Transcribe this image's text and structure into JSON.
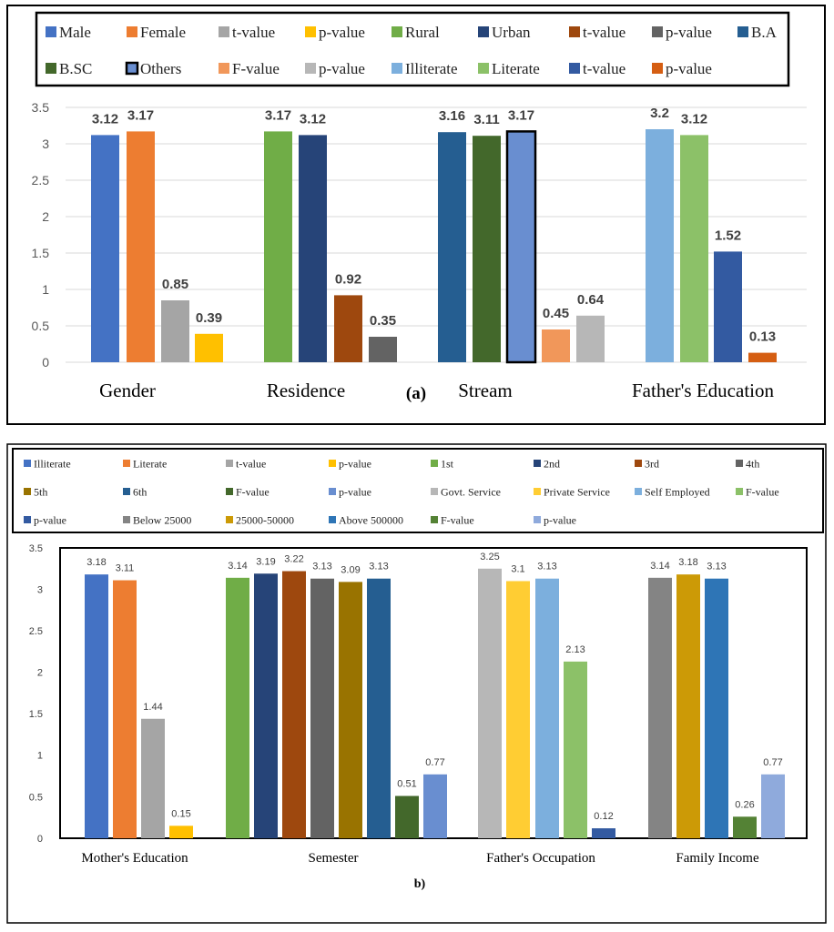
{
  "chart_data": [
    {
      "type": "bar",
      "panel_label": "(a)",
      "legend": [
        {
          "name": "Male",
          "color": "#4472C4"
        },
        {
          "name": "Female",
          "color": "#ED7D31"
        },
        {
          "name": "t-value",
          "color": "#A5A5A5"
        },
        {
          "name": "p-value",
          "color": "#FFC000"
        },
        {
          "name": "Rural",
          "color": "#70AD47"
        },
        {
          "name": "Urban",
          "color": "#264478"
        },
        {
          "name": "t-value",
          "color": "#9E480E"
        },
        {
          "name": "p-value",
          "color": "#636363"
        },
        {
          "name": "B.A",
          "color": "#255E91"
        },
        {
          "name": "B.SC",
          "color": "#43682B"
        },
        {
          "name": "Others",
          "color": "#698ED0",
          "outlined": true
        },
        {
          "name": "F-value",
          "color": "#F1975A"
        },
        {
          "name": "p-value",
          "color": "#B7B7B7"
        },
        {
          "name": "Illiterate",
          "color": "#7CAFDD"
        },
        {
          "name": "Literate",
          "color": "#8CC168"
        },
        {
          "name": "t-value",
          "color": "#335AA1"
        },
        {
          "name": "p-value",
          "color": "#D55E12"
        }
      ],
      "groups": [
        {
          "label": "Gender",
          "bars": [
            {
              "legend_index": 0,
              "value": 3.12,
              "label": "3.12"
            },
            {
              "legend_index": 1,
              "value": 3.17,
              "label": "3.17"
            },
            {
              "legend_index": 2,
              "value": 0.85,
              "label": "0.85"
            },
            {
              "legend_index": 3,
              "value": 0.39,
              "label": "0.39"
            }
          ]
        },
        {
          "label": "Residence",
          "bars": [
            {
              "legend_index": 4,
              "value": 3.17,
              "label": "3.17"
            },
            {
              "legend_index": 5,
              "value": 3.12,
              "label": "3.12"
            },
            {
              "legend_index": 6,
              "value": 0.92,
              "label": "0.92"
            },
            {
              "legend_index": 7,
              "value": 0.35,
              "label": "0.35"
            }
          ]
        },
        {
          "label": "Stream",
          "bars": [
            {
              "legend_index": 8,
              "value": 3.16,
              "label": "3.16"
            },
            {
              "legend_index": 9,
              "value": 3.11,
              "label": "3.11"
            },
            {
              "legend_index": 10,
              "value": 3.17,
              "label": "3.17"
            },
            {
              "legend_index": 11,
              "value": 0.45,
              "label": "0.45"
            },
            {
              "legend_index": 12,
              "value": 0.64,
              "label": "0.64"
            }
          ]
        },
        {
          "label": "Father's Education",
          "bars": [
            {
              "legend_index": 13,
              "value": 3.2,
              "label": "3.2"
            },
            {
              "legend_index": 14,
              "value": 3.12,
              "label": "3.12"
            },
            {
              "legend_index": 15,
              "value": 1.52,
              "label": "1.52"
            },
            {
              "legend_index": 16,
              "value": 0.13,
              "label": "0.13"
            }
          ]
        }
      ],
      "y_ticks": [
        "0",
        "0.5",
        "1",
        "1.5",
        "2",
        "2.5",
        "3",
        "3.5"
      ],
      "ylim": [
        0,
        3.5
      ],
      "grid": true
    },
    {
      "type": "bar",
      "panel_label": "b)",
      "legend": [
        {
          "name": "Illiterate",
          "color": "#4472C4"
        },
        {
          "name": "Literate",
          "color": "#ED7D31"
        },
        {
          "name": "t-value",
          "color": "#A5A5A5"
        },
        {
          "name": "p-value",
          "color": "#FFC000"
        },
        {
          "name": "1st",
          "color": "#70AD47"
        },
        {
          "name": "2nd",
          "color": "#264478"
        },
        {
          "name": "3rd",
          "color": "#9E480E"
        },
        {
          "name": "4th",
          "color": "#636363"
        },
        {
          "name": "5th",
          "color": "#997300"
        },
        {
          "name": "6th",
          "color": "#255E91"
        },
        {
          "name": "F-value",
          "color": "#43682B"
        },
        {
          "name": "p-value",
          "color": "#698ED0"
        },
        {
          "name": "Govt. Service",
          "color": "#B7B7B7"
        },
        {
          "name": "Private Service",
          "color": "#FFCD33"
        },
        {
          "name": "Self Employed",
          "color": "#7CAFDD"
        },
        {
          "name": "F-value",
          "color": "#8CC168"
        },
        {
          "name": "p-value",
          "color": "#335AA1"
        },
        {
          "name": "Below 25000",
          "color": "#848484"
        },
        {
          "name": "25000-50000",
          "color": "#CC9A06"
        },
        {
          "name": "Above 500000",
          "color": "#2E75B6"
        },
        {
          "name": "F-value",
          "color": "#548235"
        },
        {
          "name": "p-value",
          "color": "#8FAADC"
        }
      ],
      "groups": [
        {
          "label": "Mother's Education",
          "bars": [
            {
              "legend_index": 0,
              "value": 3.18,
              "label": "3.18"
            },
            {
              "legend_index": 1,
              "value": 3.11,
              "label": "3.11"
            },
            {
              "legend_index": 2,
              "value": 1.44,
              "label": "1.44"
            },
            {
              "legend_index": 3,
              "value": 0.15,
              "label": "0.15"
            }
          ]
        },
        {
          "label": "Semester",
          "bars": [
            {
              "legend_index": 4,
              "value": 3.14,
              "label": "3.14"
            },
            {
              "legend_index": 5,
              "value": 3.19,
              "label": "3.19"
            },
            {
              "legend_index": 6,
              "value": 3.22,
              "label": "3.22"
            },
            {
              "legend_index": 7,
              "value": 3.13,
              "label": "3.13"
            },
            {
              "legend_index": 8,
              "value": 3.09,
              "label": "3.09"
            },
            {
              "legend_index": 9,
              "value": 3.13,
              "label": "3.13"
            },
            {
              "legend_index": 10,
              "value": 0.51,
              "label": "0.51"
            },
            {
              "legend_index": 11,
              "value": 0.77,
              "label": "0.77"
            }
          ]
        },
        {
          "label": "Father's Occupation",
          "bars": [
            {
              "legend_index": 12,
              "value": 3.25,
              "label": "3.25"
            },
            {
              "legend_index": 13,
              "value": 3.1,
              "label": "3.1"
            },
            {
              "legend_index": 14,
              "value": 3.13,
              "label": "3.13"
            },
            {
              "legend_index": 15,
              "value": 2.13,
              "label": "2.13"
            },
            {
              "legend_index": 16,
              "value": 0.12,
              "label": "0.12"
            }
          ]
        },
        {
          "label": "Family Income",
          "bars": [
            {
              "legend_index": 17,
              "value": 3.14,
              "label": "3.14"
            },
            {
              "legend_index": 18,
              "value": 3.18,
              "label": "3.18"
            },
            {
              "legend_index": 19,
              "value": 3.13,
              "label": "3.13"
            },
            {
              "legend_index": 20,
              "value": 0.26,
              "label": "0.26"
            },
            {
              "legend_index": 21,
              "value": 0.77,
              "label": "0.77"
            }
          ]
        }
      ],
      "y_ticks": [
        "0",
        "0.5",
        "1",
        "1.5",
        "2",
        "2.5",
        "3",
        "3.5"
      ],
      "ylim": [
        0,
        3.5
      ],
      "grid": false
    }
  ]
}
